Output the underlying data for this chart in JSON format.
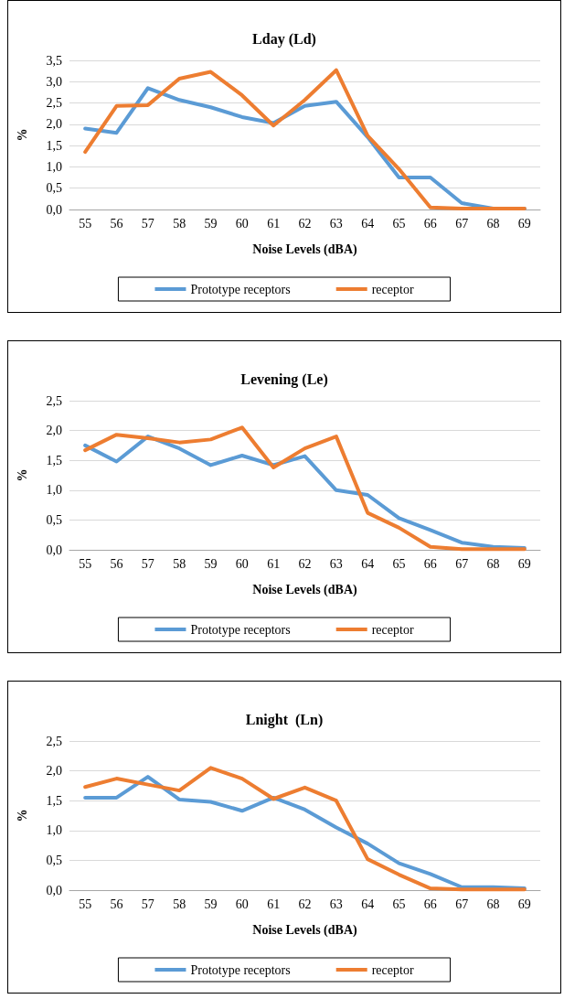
{
  "chart_data": [
    {
      "type": "line",
      "title": "Lday (Ld)",
      "xlabel": "Noise Levels (dBA)",
      "ylabel": "%",
      "categories": [
        "55",
        "56",
        "57",
        "58",
        "59",
        "60",
        "61",
        "62",
        "63",
        "64",
        "65",
        "66",
        "67",
        "68",
        "69"
      ],
      "series": [
        {
          "name": "Prototype receptors",
          "color": "#5b9bd5",
          "values": [
            1.9,
            1.8,
            2.85,
            2.57,
            2.4,
            2.17,
            2.03,
            2.43,
            2.53,
            1.7,
            0.75,
            0.75,
            0.15,
            0.02,
            0.02
          ]
        },
        {
          "name": "receptor",
          "color": "#ed7d31",
          "values": [
            1.35,
            2.43,
            2.45,
            3.07,
            3.23,
            2.68,
            1.97,
            2.57,
            3.27,
            1.73,
            0.95,
            0.05,
            0.02,
            0.02,
            0.02
          ]
        }
      ],
      "ylim": [
        0,
        3.5
      ],
      "yticks": [
        {
          "value": 0,
          "label": "0,0"
        },
        {
          "value": 0.5,
          "label": "0,5"
        },
        {
          "value": 1,
          "label": "1,0"
        },
        {
          "value": 1.5,
          "label": "1,5"
        },
        {
          "value": 2,
          "label": "2,0"
        },
        {
          "value": 2.5,
          "label": "2,5"
        },
        {
          "value": 3,
          "label": "3,0"
        },
        {
          "value": 3.5,
          "label": "3,5"
        }
      ],
      "grid": "y",
      "legend": "bottom",
      "marker": "none"
    },
    {
      "type": "line",
      "title": "Levening (Le)",
      "xlabel": "Noise Levels (dBA)",
      "ylabel": "%",
      "categories": [
        "55",
        "56",
        "57",
        "58",
        "59",
        "60",
        "61",
        "62",
        "63",
        "64",
        "65",
        "66",
        "67",
        "68",
        "69"
      ],
      "series": [
        {
          "name": "Prototype receptors",
          "color": "#5b9bd5",
          "values": [
            1.75,
            1.48,
            1.9,
            1.7,
            1.42,
            1.58,
            1.42,
            1.57,
            1.0,
            0.92,
            0.53,
            0.33,
            0.12,
            0.05,
            0.03
          ]
        },
        {
          "name": "receptor",
          "color": "#ed7d31",
          "values": [
            1.67,
            1.93,
            1.87,
            1.8,
            1.85,
            2.05,
            1.38,
            1.7,
            1.9,
            0.62,
            0.37,
            0.05,
            0.01,
            0.01,
            0.01
          ]
        }
      ],
      "ylim": [
        0,
        2.5
      ],
      "yticks": [
        {
          "value": 0,
          "label": "0,0"
        },
        {
          "value": 0.5,
          "label": "0,5"
        },
        {
          "value": 1,
          "label": "1,0"
        },
        {
          "value": 1.5,
          "label": "1,5"
        },
        {
          "value": 2,
          "label": "2,0"
        },
        {
          "value": 2.5,
          "label": "2,5"
        }
      ],
      "grid": "y",
      "legend": "bottom",
      "marker": "none"
    },
    {
      "type": "line",
      "title": "Lnight  (Ln)",
      "xlabel": "Noise Levels (dBA)",
      "ylabel": "%",
      "categories": [
        "55",
        "56",
        "57",
        "58",
        "59",
        "60",
        "61",
        "62",
        "63",
        "64",
        "65",
        "66",
        "67",
        "68",
        "69"
      ],
      "series": [
        {
          "name": "Prototype receptors",
          "color": "#5b9bd5",
          "values": [
            1.55,
            1.55,
            1.9,
            1.52,
            1.48,
            1.33,
            1.55,
            1.35,
            1.05,
            0.78,
            0.45,
            0.27,
            0.05,
            0.05,
            0.03
          ]
        },
        {
          "name": "receptor",
          "color": "#ed7d31",
          "values": [
            1.73,
            1.87,
            1.77,
            1.67,
            2.05,
            1.87,
            1.53,
            1.72,
            1.5,
            0.52,
            0.26,
            0.03,
            0.01,
            0.01,
            0.01
          ]
        }
      ],
      "ylim": [
        0,
        2.5
      ],
      "yticks": [
        {
          "value": 0,
          "label": "0,0"
        },
        {
          "value": 0.5,
          "label": "0,5"
        },
        {
          "value": 1,
          "label": "1,0"
        },
        {
          "value": 1.5,
          "label": "1,5"
        },
        {
          "value": 2,
          "label": "2,0"
        },
        {
          "value": 2.5,
          "label": "2,5"
        }
      ],
      "grid": "y",
      "legend": "bottom",
      "marker": "none"
    }
  ]
}
